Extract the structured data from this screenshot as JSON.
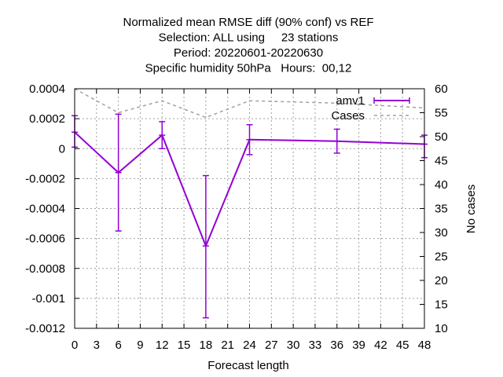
{
  "chart_data": {
    "type": "line",
    "title_lines": [
      "Normalized mean RMSE diff (90% conf) vs REF",
      "Selection: ALL using     23 stations",
      "Period: 20220601-20220630",
      "Specific humidity 50hPa   Hours:  00,12"
    ],
    "xlabel": "Forecast length",
    "ylabel": "",
    "y2label": "No cases",
    "xlim": [
      0,
      48
    ],
    "ylim": [
      -0.0012,
      0.0004
    ],
    "y2lim": [
      10,
      60
    ],
    "x_ticks": [
      0,
      3,
      6,
      9,
      12,
      15,
      18,
      21,
      24,
      27,
      30,
      33,
      36,
      39,
      42,
      45,
      48
    ],
    "y_ticks": [
      0.0004,
      0.0002,
      0,
      -0.0002,
      -0.0004,
      -0.0006,
      -0.0008,
      -0.001,
      -0.0012
    ],
    "y_tick_labels": [
      "0.0004",
      "0.0002",
      "0",
      "-0.0002",
      "-0.0004",
      "-0.0006",
      "-0.0008",
      "-0.001",
      "-0.0012"
    ],
    "y2_ticks": [
      60,
      55,
      50,
      45,
      40,
      35,
      30,
      25,
      20,
      15,
      10
    ],
    "y2_tick_labels": [
      "60",
      "55",
      "50",
      "45",
      "40",
      "35",
      "30",
      "25",
      "20",
      "15",
      "10"
    ],
    "grid": true,
    "legend_position": "top-right",
    "series": [
      {
        "name": "amv1",
        "axis": "y",
        "color": "#9400d3",
        "x": [
          0,
          6,
          12,
          18,
          24,
          36,
          48
        ],
        "y": [
          0.00011,
          -0.00016,
          9e-05,
          -0.00065,
          6e-05,
          5e-05,
          3e-05
        ],
        "err_low": [
          1e-05,
          -0.00055,
          0.0,
          -0.00113,
          -4e-05,
          -3e-05,
          -6e-05
        ],
        "err_high": [
          0.00022,
          0.00023,
          0.00018,
          -0.00018,
          0.00016,
          0.00013,
          9e-05
        ]
      },
      {
        "name": "Cases",
        "axis": "y2",
        "color": "#a0a0a0",
        "dashed": true,
        "x": [
          0,
          6,
          12,
          18,
          24,
          36,
          48
        ],
        "y": [
          60,
          55,
          57.5,
          54,
          57.5,
          57,
          56
        ]
      }
    ]
  }
}
